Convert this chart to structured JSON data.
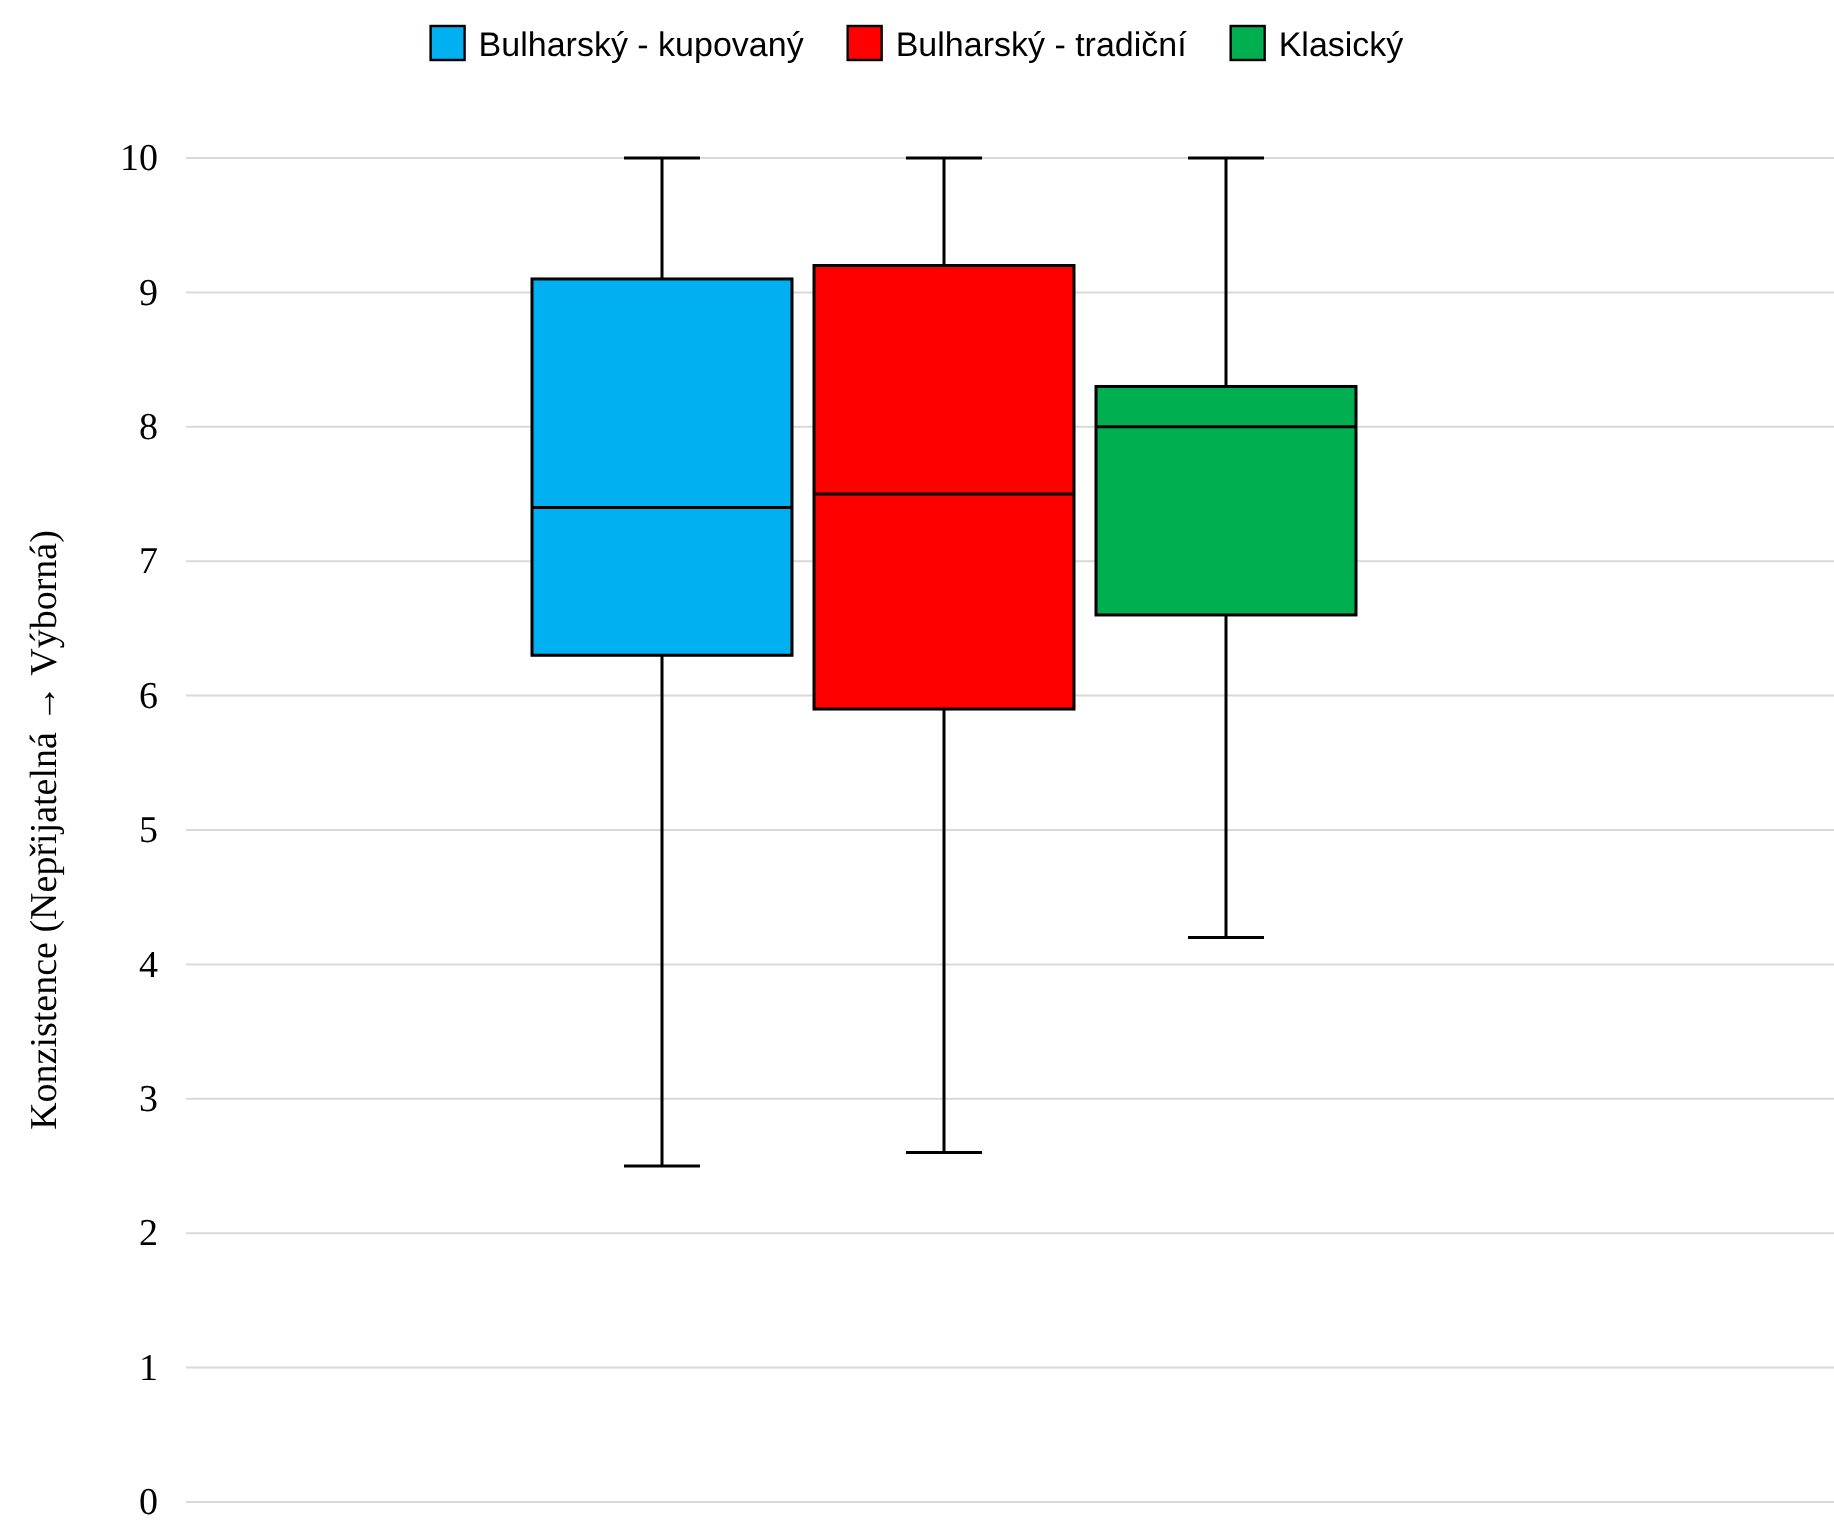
{
  "chart_data": {
    "type": "box",
    "ylabel": "Konzistence (Nepřijatelná → Výborná)",
    "categories": [
      null
    ],
    "ylim": [
      0,
      10
    ],
    "yticks": [
      0,
      1,
      2,
      3,
      4,
      5,
      6,
      7,
      8,
      9,
      10
    ],
    "grid": "y",
    "legend": "top",
    "series": [
      {
        "name": "Bulharský - kupovaný",
        "color": "#00b0f0",
        "boxes": [
          {
            "low": 2.5,
            "q1": 6.3,
            "median": 7.4,
            "q3": 9.1,
            "high": 10
          }
        ]
      },
      {
        "name": "Bulharský - tradiční",
        "color": "#ff0000",
        "boxes": [
          {
            "low": 2.6,
            "q1": 5.9,
            "median": 7.5,
            "q3": 9.2,
            "high": 10
          }
        ]
      },
      {
        "name": "Klasický",
        "color": "#00b050",
        "boxes": [
          {
            "low": 4.2,
            "q1": 6.6,
            "median": 8.0,
            "q3": 8.3,
            "high": 10
          }
        ]
      }
    ]
  }
}
